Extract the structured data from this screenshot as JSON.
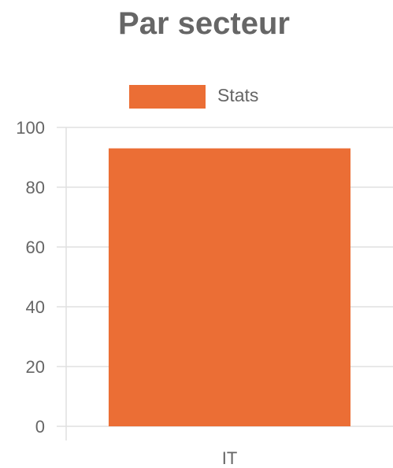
{
  "chart_data": {
    "type": "bar",
    "title": "Par secteur",
    "categories": [
      "IT"
    ],
    "series": [
      {
        "name": "Stats",
        "values": [
          93
        ],
        "color": "#EB6E35"
      }
    ],
    "ylim": [
      0,
      100
    ],
    "yticks": [
      0,
      20,
      40,
      60,
      80,
      100
    ],
    "xlabel": "",
    "ylabel": "",
    "grid": true,
    "legend_position": "top-center",
    "colors": {
      "grid": "#e0e0e0",
      "text": "#666666"
    }
  }
}
